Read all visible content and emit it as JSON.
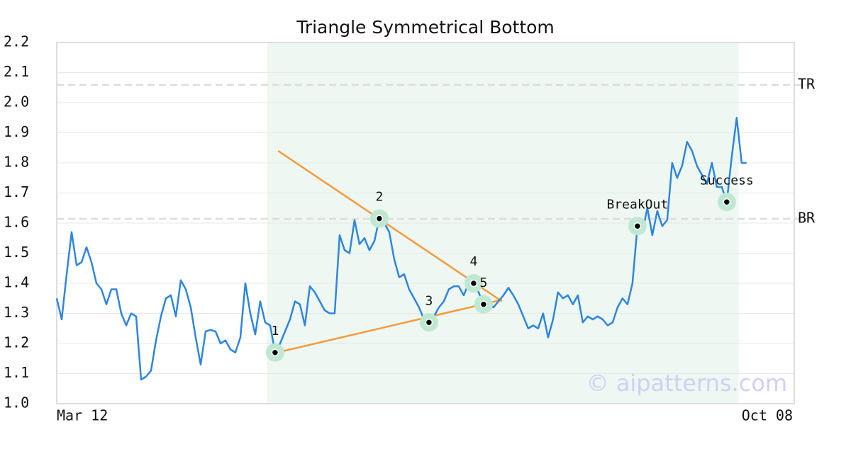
{
  "chart_data": {
    "type": "line",
    "title": "Triangle Symmetrical Bottom",
    "series": [
      {
        "color": "#2e86de",
        "values": [
          1.35,
          1.28,
          1.43,
          1.57,
          1.46,
          1.47,
          1.52,
          1.47,
          1.4,
          1.38,
          1.33,
          1.38,
          1.38,
          1.3,
          1.26,
          1.3,
          1.29,
          1.08,
          1.09,
          1.11,
          1.21,
          1.29,
          1.35,
          1.36,
          1.29,
          1.41,
          1.38,
          1.32,
          1.22,
          1.13,
          1.24,
          1.245,
          1.24,
          1.2,
          1.21,
          1.18,
          1.17,
          1.22,
          1.4,
          1.3,
          1.23,
          1.34,
          1.27,
          1.26,
          1.17,
          1.2,
          1.24,
          1.28,
          1.34,
          1.33,
          1.26,
          1.39,
          1.37,
          1.34,
          1.31,
          1.3,
          1.3,
          1.56,
          1.51,
          1.5,
          1.61,
          1.53,
          1.55,
          1.51,
          1.54,
          1.615,
          1.6,
          1.57,
          1.48,
          1.42,
          1.43,
          1.38,
          1.35,
          1.32,
          1.28,
          1.27,
          1.29,
          1.32,
          1.34,
          1.38,
          1.39,
          1.39,
          1.36,
          1.4,
          1.4,
          1.37,
          1.33,
          1.33,
          1.32,
          1.34,
          1.36,
          1.385,
          1.36,
          1.33,
          1.29,
          1.25,
          1.26,
          1.25,
          1.3,
          1.22,
          1.28,
          1.37,
          1.35,
          1.36,
          1.33,
          1.36,
          1.27,
          1.29,
          1.28,
          1.29,
          1.28,
          1.26,
          1.27,
          1.32,
          1.35,
          1.33,
          1.4,
          1.59,
          1.57,
          1.65,
          1.56,
          1.64,
          1.59,
          1.61,
          1.8,
          1.75,
          1.79,
          1.87,
          1.84,
          1.79,
          1.76,
          1.73,
          1.8,
          1.72,
          1.72,
          1.67,
          1.82,
          1.95,
          1.8,
          1.8
        ]
      }
    ],
    "xlim": [
      0,
      148.6
    ],
    "xticks": [
      {
        "value": 0,
        "label": "Mar 12"
      },
      {
        "value": 148.6,
        "label": "Oct 08"
      }
    ],
    "ylim": [
      1.0,
      2.2
    ],
    "yticks": [
      {
        "value": 1.0,
        "label": "1.0"
      },
      1.1,
      1.2,
      1.3,
      1.4,
      1.5,
      1.6,
      1.7,
      1.8,
      1.9,
      {
        "value": 2.0,
        "label": "2.0"
      },
      2.1,
      2.2
    ],
    "grid": true,
    "shaded_range": [
      42.4,
      137.4
    ],
    "points": [
      {
        "label": "1",
        "index": 44
      },
      {
        "label": "2",
        "index": 65
      },
      {
        "label": "3",
        "index": 75
      },
      {
        "label": "4",
        "index": 84
      },
      {
        "label": "5",
        "index": 86
      },
      {
        "label": "BreakOut",
        "index": 117
      },
      {
        "label": "Success",
        "index": 135
      }
    ],
    "trendlines": [
      {
        "color": "#f59a3c",
        "x": [
          44.6,
          89.7
        ],
        "y": [
          1.84,
          1.34
        ]
      },
      {
        "color": "#f59a3c",
        "x": [
          44.4,
          89.7
        ],
        "y": [
          1.17,
          1.345
        ]
      }
    ],
    "levels": [
      {
        "label": "TR",
        "value": 2.059
      },
      {
        "label": "BR",
        "value": 1.614
      }
    ],
    "watermark": "© aipatterns.com"
  }
}
